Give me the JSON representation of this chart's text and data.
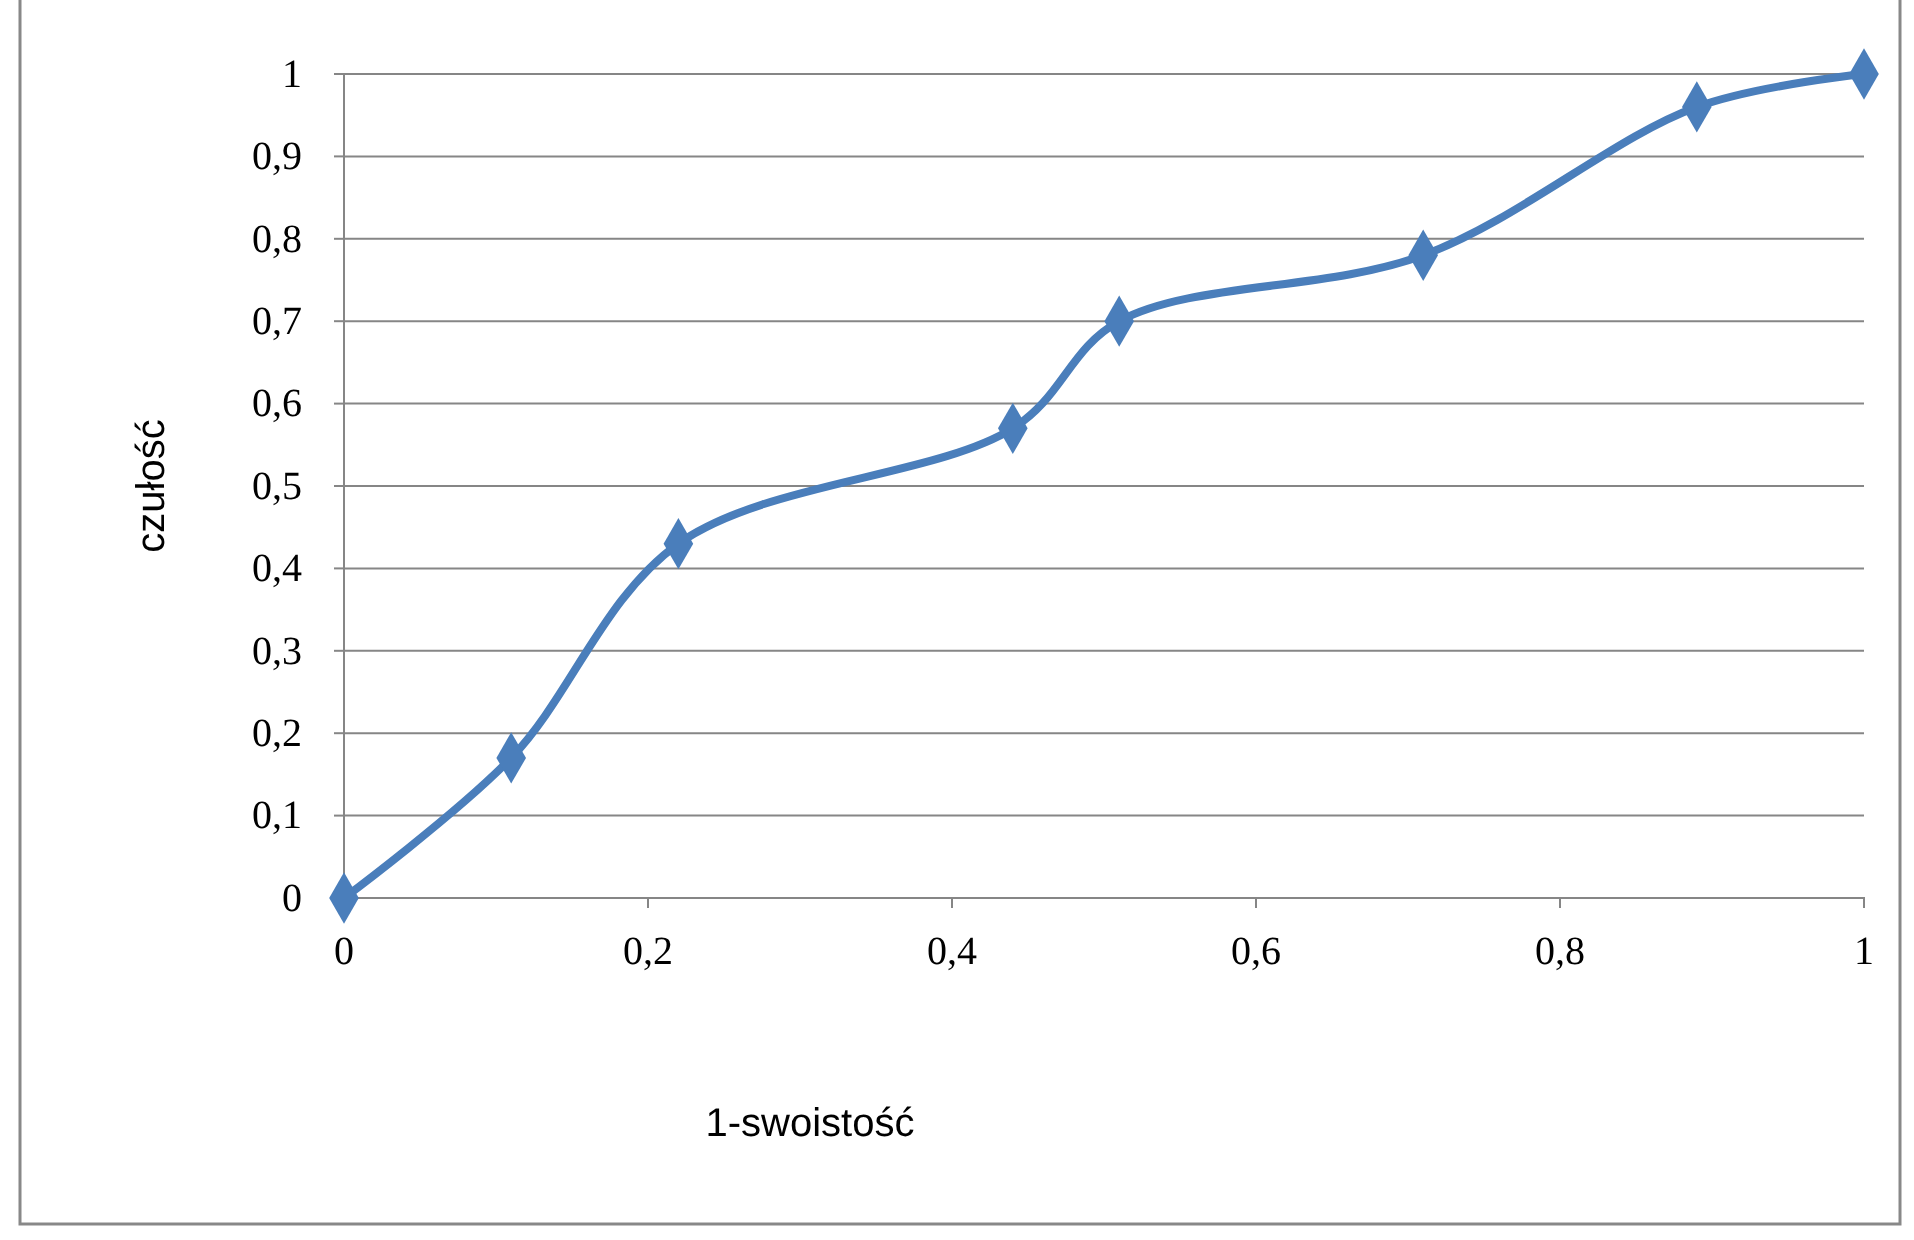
{
  "chart_data": {
    "type": "line",
    "xlabel": "1-swoistość",
    "ylabel": "czułość",
    "x": [
      0,
      0.11,
      0.22,
      0.44,
      0.51,
      0.71,
      0.89,
      1
    ],
    "series": [
      {
        "color": "#4a7ebb",
        "values": [
          0,
          0.17,
          0.43,
          0.57,
          0.7,
          0.78,
          0.96,
          1
        ]
      }
    ],
    "xlim": [
      0,
      1
    ],
    "ylim": [
      0,
      1
    ],
    "xticks": [
      0,
      {
        "value": 0.2,
        "label": "0,2"
      },
      {
        "value": 0.4,
        "label": "0,4"
      },
      {
        "value": 0.6,
        "label": "0,6"
      },
      {
        "value": 0.8,
        "label": "0,8"
      },
      1
    ],
    "yticks": [
      0,
      {
        "value": 0.1,
        "label": "0,1"
      },
      {
        "value": 0.2,
        "label": "0,2"
      },
      {
        "value": 0.3,
        "label": "0,3"
      },
      {
        "value": 0.4,
        "label": "0,4"
      },
      {
        "value": 0.5,
        "label": "0,5"
      },
      {
        "value": 0.6,
        "label": "0,6"
      },
      {
        "value": 0.7,
        "label": "0,7"
      },
      {
        "value": 0.8,
        "label": "0,8"
      },
      {
        "value": 0.9,
        "label": "0,9"
      },
      1
    ],
    "grid": "y",
    "marker": "diamond",
    "line_style": "solid"
  }
}
